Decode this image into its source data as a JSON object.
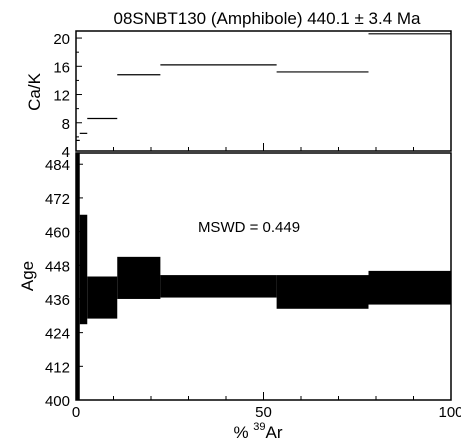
{
  "chart_data": [
    {
      "type": "line",
      "title": "08SNBT130 (Amphibole) 440.1 ± 3.4 Ma",
      "ylabel": "Ca/K",
      "xlim": [
        0,
        100
      ],
      "ylim": [
        4,
        21
      ],
      "yticks": [
        4,
        8,
        12,
        16,
        20
      ],
      "style": "step segments",
      "steps": [
        {
          "x0": 0.0,
          "x1": 1.0,
          "value": 5.5
        },
        {
          "x0": 1.0,
          "x1": 3.0,
          "value": 6.5
        },
        {
          "x0": 3.0,
          "x1": 11.0,
          "value": 8.6
        },
        {
          "x0": 11.0,
          "x1": 22.5,
          "value": 14.8
        },
        {
          "x0": 22.5,
          "x1": 53.5,
          "value": 16.2
        },
        {
          "x0": 53.5,
          "x1": 78.0,
          "value": 15.2
        },
        {
          "x0": 78.0,
          "x1": 100.0,
          "value": 20.6
        }
      ]
    },
    {
      "type": "area",
      "style": "age spectrum (filled error boxes)",
      "ylabel": "Age",
      "xlabel_prefix": "% ",
      "xlabel_sup": "39",
      "xlabel_suffix": "Ar",
      "xlim": [
        0,
        100
      ],
      "ylim": [
        400,
        488
      ],
      "xticks": [
        0,
        50,
        100
      ],
      "yticks": [
        400,
        412,
        424,
        436,
        448,
        460,
        472,
        484
      ],
      "annotation": "MSWD = 0.449",
      "steps": [
        {
          "x0": 0.0,
          "x1": 1.0,
          "low": 400,
          "high": 488
        },
        {
          "x0": 1.0,
          "x1": 3.0,
          "low": 427,
          "high": 466
        },
        {
          "x0": 3.0,
          "x1": 11.0,
          "low": 429,
          "high": 444
        },
        {
          "x0": 11.0,
          "x1": 22.5,
          "low": 436,
          "high": 451
        },
        {
          "x0": 22.5,
          "x1": 53.5,
          "low": 436.5,
          "high": 444.5
        },
        {
          "x0": 53.5,
          "x1": 78.0,
          "low": 432.5,
          "high": 444.5
        },
        {
          "x0": 78.0,
          "x1": 100.0,
          "low": 434,
          "high": 446
        }
      ]
    }
  ]
}
